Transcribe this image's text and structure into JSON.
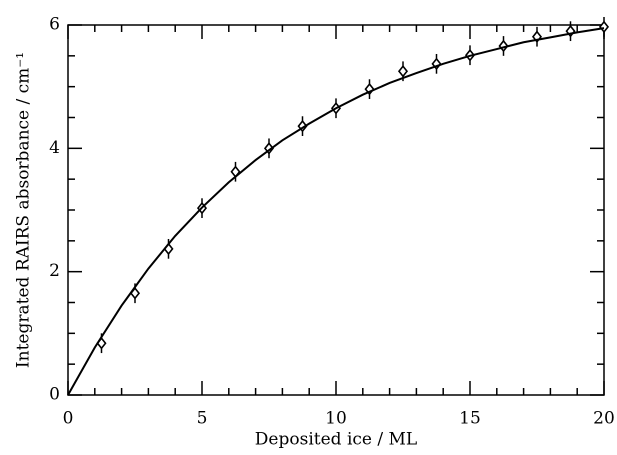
{
  "chart_data": {
    "type": "scatter",
    "xlabel": "Deposited ice / ML",
    "ylabel": "Integrated RAIRS absorbance / cm⁻¹",
    "xlim": [
      0,
      20
    ],
    "ylim": [
      0,
      6
    ],
    "xticks": [
      0,
      5,
      10,
      15,
      20
    ],
    "yticks": [
      0,
      2,
      4,
      6
    ],
    "xminorticks": [
      1,
      2,
      3,
      4,
      6,
      7,
      8,
      9,
      11,
      12,
      13,
      14,
      16,
      17,
      18,
      19
    ],
    "yminorticks": [
      0.5,
      1,
      1.5,
      2.5,
      3,
      3.5,
      4.5,
      5,
      5.5
    ],
    "color": "#000000",
    "series": [
      {
        "kind": "points",
        "x": [
          1.25,
          2.5,
          3.75,
          5,
          6.25,
          7.5,
          8.75,
          10,
          11.25,
          12.5,
          13.75,
          15,
          16.25,
          17.5,
          18.75,
          20
        ],
        "values": [
          0.84,
          1.65,
          2.37,
          3.03,
          3.62,
          4.0,
          4.36,
          4.65,
          4.96,
          5.25,
          5.37,
          5.51,
          5.66,
          5.81,
          5.9,
          5.97
        ],
        "errors": [
          0.16,
          0.16,
          0.16,
          0.16,
          0.16,
          0.16,
          0.16,
          0.16,
          0.16,
          0.16,
          0.16,
          0.16,
          0.16,
          0.16,
          0.16,
          0.16
        ]
      },
      {
        "kind": "line",
        "x": [
          0,
          1,
          2,
          3,
          4,
          5,
          6,
          7,
          8,
          9,
          10,
          11,
          12,
          13,
          14,
          15,
          16,
          17,
          18,
          19,
          20
        ],
        "values": [
          0,
          0.77,
          1.45,
          2.05,
          2.58,
          3.04,
          3.45,
          3.81,
          4.13,
          4.4,
          4.65,
          4.87,
          5.06,
          5.22,
          5.37,
          5.5,
          5.61,
          5.72,
          5.8,
          5.88,
          5.95
        ]
      }
    ]
  }
}
